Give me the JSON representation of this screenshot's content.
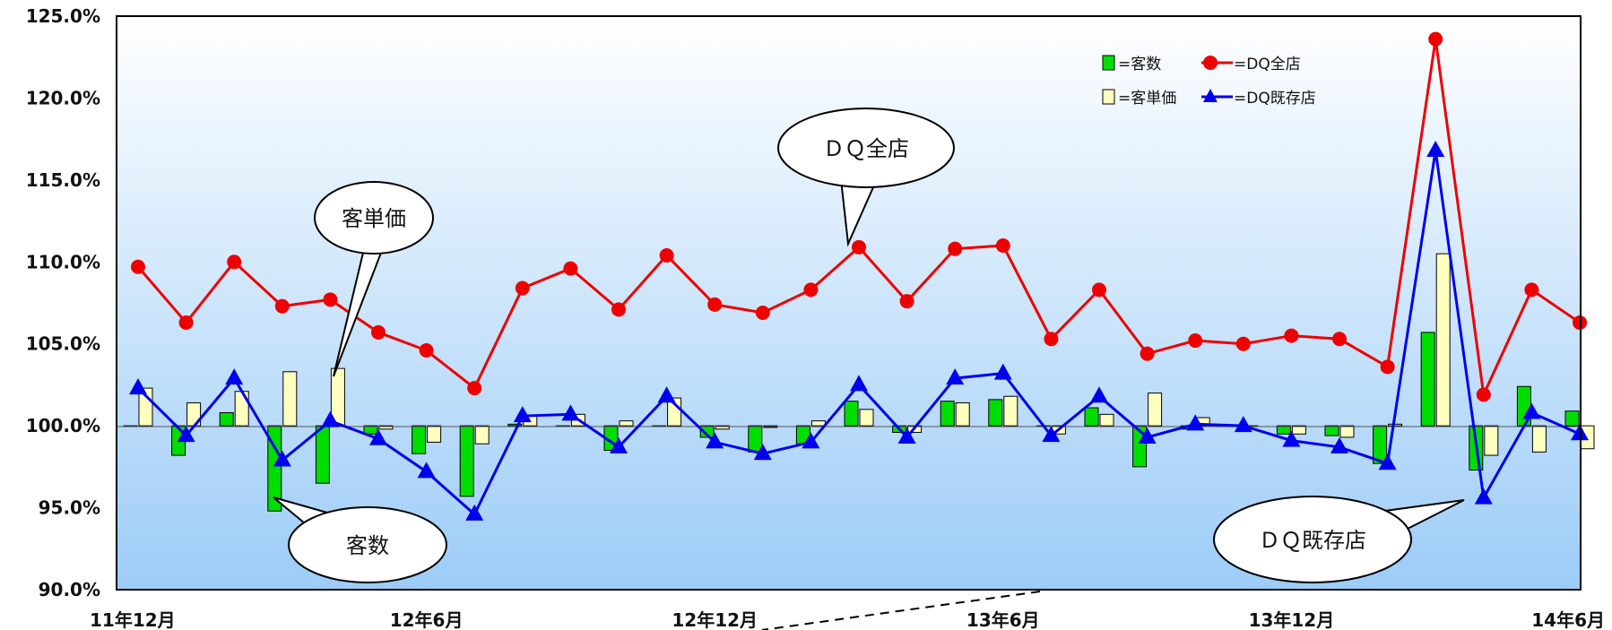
{
  "chart_data": {
    "type": "bar+line",
    "ylim": [
      90,
      125
    ],
    "yticks": [
      "90.0%",
      "95.0%",
      "100.0%",
      "105.0%",
      "110.0%",
      "115.0%",
      "120.0%",
      "125.0%"
    ],
    "xtick_labels": [
      "11年12月",
      "12年6月",
      "12年12月",
      "13年6月",
      "13年12月",
      "14年6月"
    ],
    "xtick_positions": [
      0,
      6,
      12,
      18,
      24,
      30
    ],
    "n_months": 31,
    "bar_series": [
      {
        "name": "=客数",
        "color": "#00dd00",
        "values": [
          100.0,
          98.2,
          100.8,
          94.8,
          96.5,
          99.5,
          98.3,
          95.7,
          100.1,
          100.0,
          98.5,
          100.0,
          99.3,
          98.4,
          98.9,
          101.5,
          99.6,
          101.5,
          101.6,
          100.0,
          101.1,
          97.5,
          99.8,
          100.0,
          99.5,
          99.4,
          97.7,
          105.7,
          97.3,
          102.4,
          100.9
        ]
      },
      {
        "name": "=客単価",
        "color": "#ffffc0",
        "values": [
          102.3,
          101.4,
          102.1,
          103.3,
          103.5,
          99.8,
          99.0,
          98.9,
          100.6,
          100.7,
          100.3,
          101.7,
          99.8,
          99.9,
          100.3,
          101.0,
          99.6,
          101.4,
          101.8,
          99.5,
          100.7,
          102.0,
          100.5,
          100.0,
          99.5,
          99.3,
          100.1,
          110.5,
          98.2,
          98.4,
          98.6
        ]
      }
    ],
    "line_series": [
      {
        "name": "=DQ全店",
        "color": "#ee0000",
        "marker": "circle",
        "values": [
          109.7,
          106.3,
          110.0,
          107.3,
          107.7,
          105.7,
          104.6,
          102.3,
          108.4,
          109.6,
          107.1,
          110.4,
          107.4,
          106.9,
          108.3,
          110.9,
          107.6,
          110.8,
          111.0,
          105.3,
          108.3,
          104.4,
          105.2,
          105.0,
          105.5,
          105.3,
          103.6,
          123.6,
          101.9,
          108.3,
          106.3
        ]
      },
      {
        "name": "=DQ既存店",
        "color": "#0000ee",
        "marker": "triangle",
        "values": [
          102.3,
          99.4,
          102.9,
          97.9,
          100.3,
          99.2,
          97.2,
          94.6,
          100.6,
          100.7,
          98.7,
          101.8,
          99.0,
          98.3,
          99.0,
          102.5,
          99.3,
          102.9,
          103.2,
          99.4,
          101.8,
          99.3,
          100.1,
          100.0,
          99.1,
          98.7,
          97.7,
          116.8,
          95.6,
          100.8,
          99.5
        ]
      }
    ],
    "callouts": [
      "客単価",
      "客数",
      "ＤＱ全店",
      "ＤＱ既存店"
    ],
    "legend_position": "top-right"
  }
}
